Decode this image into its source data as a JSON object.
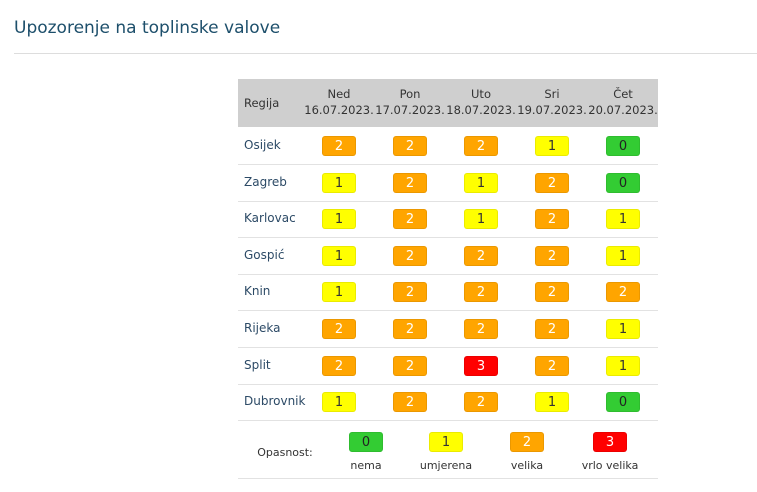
{
  "header": {
    "title": "Upozorenje na toplinske valove"
  },
  "table": {
    "region_header": "Regija",
    "columns": [
      {
        "day": "Ned",
        "date": "16.07.2023."
      },
      {
        "day": "Pon",
        "date": "17.07.2023."
      },
      {
        "day": "Uto",
        "date": "18.07.2023."
      },
      {
        "day": "Sri",
        "date": "19.07.2023."
      },
      {
        "day": "Čet",
        "date": "20.07.2023."
      }
    ],
    "rows": [
      {
        "region": "Osijek",
        "levels": [
          2,
          2,
          2,
          1,
          0
        ]
      },
      {
        "region": "Zagreb",
        "levels": [
          1,
          2,
          1,
          2,
          0
        ]
      },
      {
        "region": "Karlovac",
        "levels": [
          1,
          2,
          1,
          2,
          1
        ]
      },
      {
        "region": "Gospić",
        "levels": [
          1,
          2,
          2,
          2,
          1
        ]
      },
      {
        "region": "Knin",
        "levels": [
          1,
          2,
          2,
          2,
          2
        ]
      },
      {
        "region": "Rijeka",
        "levels": [
          2,
          2,
          2,
          2,
          1
        ]
      },
      {
        "region": "Split",
        "levels": [
          2,
          2,
          3,
          2,
          1
        ]
      },
      {
        "region": "Dubrovnik",
        "levels": [
          1,
          2,
          2,
          1,
          0
        ]
      }
    ]
  },
  "legend": {
    "title": "Opasnost:",
    "items": [
      {
        "level": 0,
        "label": "nema",
        "color": "#33cc33",
        "text_color": "#222222"
      },
      {
        "level": 1,
        "label": "umjerena",
        "color": "#ffff00",
        "text_color": "#333333"
      },
      {
        "level": 2,
        "label": "velika",
        "color": "#ffa500",
        "text_color": "#ffffff"
      },
      {
        "level": 3,
        "label": "vrlo velika",
        "color": "#ff0000",
        "text_color": "#ffffff"
      }
    ]
  }
}
